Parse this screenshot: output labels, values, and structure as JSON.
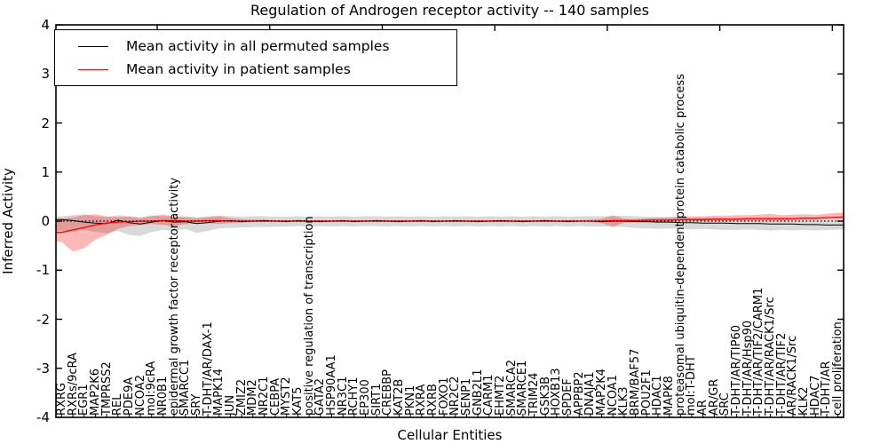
{
  "chart_data": {
    "type": "line",
    "title": "Regulation of Androgen receptor activity -- 140 samples",
    "xlabel": "Cellular Entities",
    "ylabel": "Inferred Activity",
    "ylim": [
      -4,
      4
    ],
    "yticks": [
      4,
      3,
      2,
      1,
      0,
      -1,
      -2,
      -3,
      -4
    ],
    "grid": false,
    "legend_position": "upper left",
    "zero_reference_line": true,
    "top_tick_indices": [
      9,
      19,
      29,
      39,
      49,
      59,
      69
    ],
    "categories": [
      "RXRG",
      "RXRs/9cRA",
      "EGR1",
      "MAP2K6",
      "TMPRSS2",
      "REL",
      "PDE9A",
      "NCOA2",
      "mol:9cRA",
      "NR0B1",
      "epidermal growth factor receptor activity",
      "SMARCC1",
      "SRY",
      "T-DHT/AR/DAX-1",
      "MAPK14",
      "JUN",
      "ZMIZ2",
      "MDM2",
      "NR2C1",
      "CEBPA",
      "MYST2",
      "KAT5",
      "positive regulation of transcription",
      "GATA2",
      "HSP90AA1",
      "NR3C1",
      "RCHY1",
      "EP300",
      "SIRT1",
      "CREBBP",
      "KAT2B",
      "PKN1",
      "RXRA",
      "RXRB",
      "FOXO1",
      "NR2C2",
      "SENP1",
      "GNB2L1",
      "CARM1",
      "EHMT2",
      "SMARCA2",
      "SMARCE1",
      "TRIM24",
      "GSK3B",
      "HOXB13",
      "SPDEF",
      "APPBP2",
      "DNAJA1",
      "MAP2K4",
      "NCOA1",
      "KLK3",
      "BRM/BAF57",
      "POU2F1",
      "HDAC1",
      "MAPK8",
      "proteasomal ubiquitin-dependent protein catabolic process",
      "mol:T-DHT",
      "AR",
      "AR/GR",
      "SRC",
      "T-DHT/AR/TIP60",
      "T-DHT/AR/Hsp90",
      "T-DHT/AR/TIF2/CARM1",
      "T-DHT/AR/RACK1/Src",
      "T-DHT/AR/TIF2",
      "AR/RACK1/Src",
      "KLK2",
      "HDAC7",
      "T-DHT/AR",
      "cell proliferation"
    ],
    "series": [
      {
        "name": "Mean activity in all permuted samples",
        "color": "#000000",
        "band_color": "rgba(0,0,0,0.15)",
        "line_width": 1.0,
        "values": [
          0.03,
          0.01,
          -0.02,
          -0.04,
          -0.05,
          0.02,
          -0.03,
          -0.06,
          -0.02,
          0.01,
          -0.02,
          -0.01,
          -0.05,
          -0.03,
          0.0,
          0.01,
          -0.01,
          0.0,
          0.01,
          0.0,
          -0.01,
          0.01,
          0.0,
          -0.01,
          0.0,
          0.01,
          -0.01,
          0.0,
          0.01,
          0.0,
          -0.01,
          0.0,
          0.01,
          -0.01,
          0.0,
          0.01,
          0.0,
          -0.01,
          0.0,
          0.01,
          0.0,
          -0.01,
          0.0,
          0.01,
          0.0,
          -0.01,
          0.0,
          0.0,
          -0.01,
          0.0,
          0.0,
          -0.01,
          -0.01,
          -0.02,
          -0.02,
          -0.03,
          -0.03,
          -0.04,
          -0.04,
          -0.04,
          -0.05,
          -0.05,
          -0.05,
          -0.06,
          -0.06,
          -0.06,
          -0.07,
          -0.07,
          -0.08,
          -0.08
        ],
        "band_upper": [
          0.1,
          0.12,
          0.14,
          0.1,
          0.08,
          0.12,
          0.1,
          0.08,
          0.12,
          0.1,
          0.09,
          0.1,
          0.08,
          0.1,
          0.11,
          0.1,
          0.09,
          0.1,
          0.1,
          0.09,
          0.09,
          0.1,
          0.09,
          0.1,
          0.09,
          0.1,
          0.09,
          0.1,
          0.1,
          0.09,
          0.1,
          0.09,
          0.1,
          0.09,
          0.1,
          0.09,
          0.1,
          0.09,
          0.1,
          0.09,
          0.1,
          0.09,
          0.1,
          0.09,
          0.1,
          0.09,
          0.1,
          0.1,
          0.1,
          0.1,
          0.11,
          0.1,
          0.09,
          0.08,
          0.08,
          0.08,
          0.07,
          0.07,
          0.07,
          0.06,
          0.06,
          0.06,
          0.05,
          0.05,
          0.05,
          0.04,
          0.04,
          0.04,
          0.03,
          0.03
        ],
        "band_lower": [
          -0.2,
          -0.22,
          -0.18,
          -0.22,
          -0.25,
          -0.2,
          -0.28,
          -0.3,
          -0.22,
          -0.18,
          -0.2,
          -0.16,
          -0.24,
          -0.2,
          -0.15,
          -0.14,
          -0.13,
          -0.12,
          -0.12,
          -0.11,
          -0.11,
          -0.1,
          -0.11,
          -0.1,
          -0.11,
          -0.1,
          -0.11,
          -0.1,
          -0.1,
          -0.11,
          -0.1,
          -0.11,
          -0.1,
          -0.11,
          -0.1,
          -0.11,
          -0.1,
          -0.11,
          -0.1,
          -0.11,
          -0.1,
          -0.11,
          -0.1,
          -0.11,
          -0.1,
          -0.11,
          -0.1,
          -0.11,
          -0.11,
          -0.12,
          -0.12,
          -0.14,
          -0.15,
          -0.16,
          -0.15,
          -0.16,
          -0.17,
          -0.16,
          -0.17,
          -0.18,
          -0.18,
          -0.17,
          -0.18,
          -0.19,
          -0.18,
          -0.19,
          -0.18,
          -0.19,
          -0.18,
          -0.17
        ]
      },
      {
        "name": "Mean activity in patient samples",
        "color": "#ff0000",
        "band_color": "rgba(255,0,0,0.28)",
        "line_width": 1.3,
        "values": [
          -0.23,
          -0.18,
          -0.13,
          -0.08,
          -0.04,
          -0.02,
          -0.01,
          0.0,
          0.0,
          0.01,
          0.01,
          0.0,
          0.0,
          0.01,
          0.01,
          0.0,
          0.0,
          0.0,
          0.0,
          0.0,
          0.0,
          0.0,
          0.0,
          0.0,
          0.0,
          0.0,
          0.0,
          0.0,
          0.0,
          0.0,
          0.0,
          0.0,
          0.0,
          0.0,
          0.0,
          0.0,
          0.0,
          0.0,
          0.0,
          0.0,
          0.0,
          0.0,
          0.0,
          0.0,
          0.0,
          0.0,
          0.0,
          0.0,
          0.0,
          0.01,
          0.01,
          0.01,
          0.02,
          0.02,
          0.02,
          0.03,
          0.03,
          0.03,
          0.04,
          0.04,
          0.04,
          0.05,
          0.05,
          0.05,
          0.05,
          0.05,
          0.06,
          0.06,
          0.07,
          0.08
        ],
        "band_upper": [
          0.05,
          0.08,
          0.12,
          0.14,
          0.1,
          0.08,
          0.09,
          0.06,
          0.1,
          0.13,
          0.1,
          0.08,
          0.06,
          0.08,
          0.1,
          0.06,
          0.04,
          0.03,
          0.03,
          0.02,
          0.02,
          0.02,
          0.02,
          0.02,
          0.02,
          0.02,
          0.02,
          0.02,
          0.02,
          0.02,
          0.02,
          0.02,
          0.02,
          0.02,
          0.02,
          0.02,
          0.02,
          0.02,
          0.02,
          0.02,
          0.02,
          0.02,
          0.02,
          0.02,
          0.02,
          0.02,
          0.02,
          0.03,
          0.05,
          0.12,
          0.05,
          0.04,
          0.06,
          0.07,
          0.08,
          0.09,
          0.1,
          0.1,
          0.11,
          0.11,
          0.12,
          0.12,
          0.13,
          0.15,
          0.12,
          0.13,
          0.14,
          0.13,
          0.15,
          0.17
        ],
        "band_lower": [
          -0.42,
          -0.62,
          -0.55,
          -0.38,
          -0.28,
          -0.16,
          -0.1,
          -0.08,
          -0.06,
          -0.08,
          -0.1,
          -0.06,
          -0.05,
          -0.04,
          -0.06,
          -0.04,
          -0.03,
          -0.02,
          -0.02,
          -0.02,
          -0.02,
          -0.02,
          -0.02,
          -0.02,
          -0.02,
          -0.02,
          -0.02,
          -0.02,
          -0.02,
          -0.02,
          -0.02,
          -0.02,
          -0.02,
          -0.02,
          -0.02,
          -0.02,
          -0.02,
          -0.02,
          -0.02,
          -0.02,
          -0.02,
          -0.02,
          -0.02,
          -0.02,
          -0.02,
          -0.02,
          -0.02,
          -0.02,
          -0.04,
          -0.11,
          -0.03,
          -0.02,
          -0.02,
          -0.01,
          -0.01,
          -0.01,
          0.0,
          0.0,
          0.0,
          0.0,
          0.01,
          0.01,
          0.01,
          0.01,
          0.01,
          0.02,
          0.02,
          0.02,
          0.03,
          0.04
        ]
      }
    ]
  }
}
